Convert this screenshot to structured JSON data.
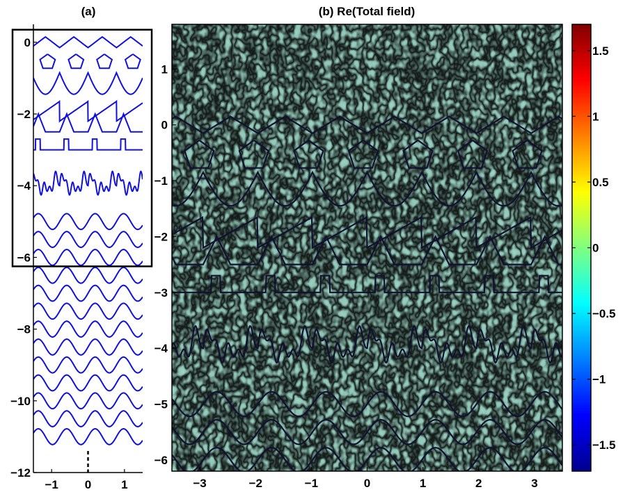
{
  "chart_data": [
    {
      "type": "line",
      "title": "(a)",
      "xlim": [
        -1.5,
        1.5
      ],
      "ylim": [
        -12,
        0.5
      ],
      "xticks": [
        "−1",
        "0",
        "1"
      ],
      "xtick_values": [
        -1,
        0,
        1
      ],
      "yticks": [
        "0",
        "−2",
        "−4",
        "−6",
        "−8",
        "−10",
        "−12"
      ],
      "ytick_values": [
        0,
        -2,
        -4,
        -6,
        -8,
        -10,
        -12
      ],
      "line_color": "#1010e0",
      "inset_box": {
        "x": [
          -1.8,
          1.8
        ],
        "y": [
          -6.25,
          0.35
        ]
      },
      "curves": [
        {
          "kind": "zigzag",
          "offset": 0
        },
        {
          "kind": "pentagons",
          "offset": -0.6
        },
        {
          "kind": "arcs",
          "offset": -0.85
        },
        {
          "kind": "sawtooth",
          "offset": -2.1
        },
        {
          "kind": "triangles",
          "offset": -2.5
        },
        {
          "kind": "rect",
          "offset": -3.0
        },
        {
          "kind": "wiggle",
          "offset": -4.0
        },
        {
          "kind": "sine",
          "offset": -5.0
        },
        {
          "kind": "sine",
          "offset": -5.5
        },
        {
          "kind": "sine",
          "offset": -6.0
        },
        {
          "kind": "sine",
          "offset": -6.5
        },
        {
          "kind": "sine",
          "offset": -7.0
        },
        {
          "kind": "sine",
          "offset": -7.5
        },
        {
          "kind": "sine",
          "offset": -8.0
        },
        {
          "kind": "sine",
          "offset": -8.5
        },
        {
          "kind": "sine",
          "offset": -9.0
        },
        {
          "kind": "sine",
          "offset": -9.5
        },
        {
          "kind": "sine",
          "offset": -10.0
        },
        {
          "kind": "sine",
          "offset": -10.5
        },
        {
          "kind": "sine",
          "offset": -11.0
        }
      ],
      "dashed_line": {
        "x": 0,
        "y": [
          -11.4,
          -12
        ]
      }
    },
    {
      "type": "heatmap",
      "title": "(b) Re(Total field)",
      "xlim": [
        -3.5,
        3.5
      ],
      "ylim": [
        -6.2,
        1.8
      ],
      "xticks": [
        "−3",
        "−2",
        "−1",
        "0",
        "1",
        "2",
        "3"
      ],
      "xtick_values": [
        -3,
        -2,
        -1,
        0,
        1,
        2,
        3
      ],
      "yticks": [
        "1",
        "0",
        "−1",
        "−2",
        "−3",
        "−4",
        "−5",
        "−6"
      ],
      "ytick_values": [
        1,
        0,
        -1,
        -2,
        -3,
        -4,
        -5,
        -6
      ],
      "overlay_line_color": "#101030",
      "colorbar": {
        "clim": [
          -1.7,
          1.7
        ],
        "ticks": [
          "1.5",
          "1",
          "0.5",
          "0",
          "−0.5",
          "−1",
          "−1.5"
        ],
        "tick_values": [
          1.5,
          1,
          0.5,
          0,
          -0.5,
          -1,
          -1.5
        ],
        "colormap": "jet"
      }
    }
  ]
}
